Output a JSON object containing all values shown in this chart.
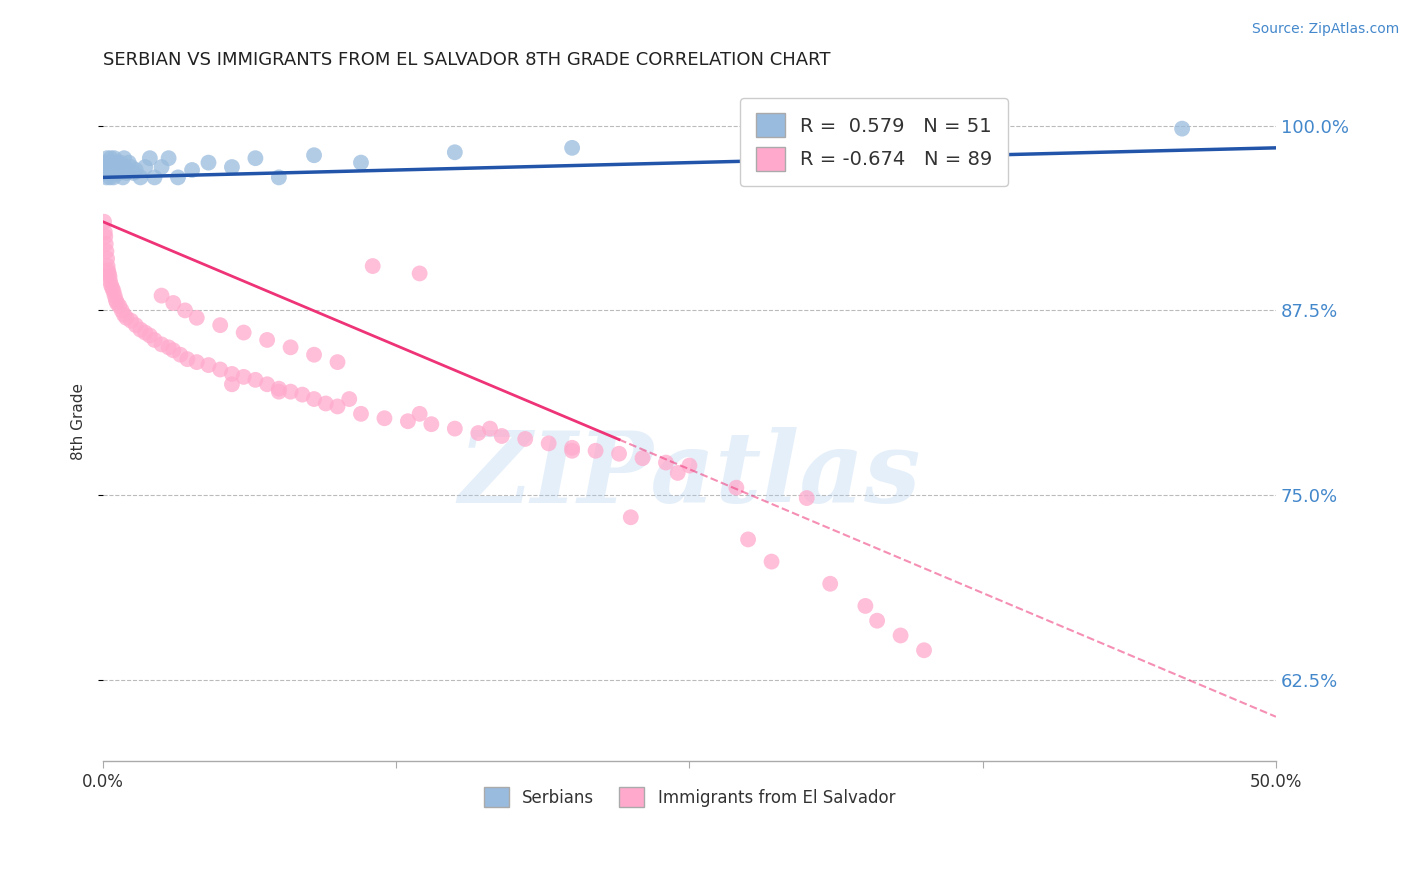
{
  "title": "SERBIAN VS IMMIGRANTS FROM EL SALVADOR 8TH GRADE CORRELATION CHART",
  "source_text": "Source: ZipAtlas.com",
  "ylabel": "8th Grade",
  "xlim": [
    0.0,
    50.0
  ],
  "ylim": [
    57.0,
    103.0
  ],
  "yticks": [
    62.5,
    75.0,
    87.5,
    100.0
  ],
  "ytick_labels": [
    "62.5%",
    "75.0%",
    "87.5%",
    "100.0%"
  ],
  "blue_R": 0.579,
  "blue_N": 51,
  "pink_R": -0.674,
  "pink_N": 89,
  "blue_color": "#99BBDD",
  "pink_color": "#FFAACC",
  "blue_line_color": "#2255AA",
  "pink_line_color": "#EE3377",
  "legend_blue_label": "Serbians",
  "legend_pink_label": "Immigrants from El Salvador",
  "watermark_text": "ZIPatlas",
  "blue_points_x": [
    0.05,
    0.08,
    0.1,
    0.12,
    0.15,
    0.18,
    0.2,
    0.22,
    0.25,
    0.28,
    0.3,
    0.33,
    0.35,
    0.38,
    0.4,
    0.42,
    0.45,
    0.48,
    0.5,
    0.55,
    0.6,
    0.65,
    0.7,
    0.75,
    0.8,
    0.85,
    0.9,
    0.95,
    1.0,
    1.1,
    1.2,
    1.3,
    1.4,
    1.6,
    1.8,
    2.0,
    2.2,
    2.5,
    2.8,
    3.2,
    3.8,
    4.5,
    5.5,
    6.5,
    7.5,
    9.0,
    11.0,
    15.0,
    20.0,
    35.0,
    46.0
  ],
  "blue_points_y": [
    97.2,
    96.8,
    97.5,
    97.0,
    96.5,
    97.8,
    97.2,
    96.8,
    97.5,
    97.0,
    96.5,
    97.8,
    97.2,
    96.8,
    97.5,
    97.0,
    96.5,
    97.8,
    97.2,
    96.8,
    97.5,
    97.0,
    96.8,
    97.5,
    97.0,
    96.5,
    97.8,
    97.2,
    96.8,
    97.5,
    97.2,
    96.8,
    97.0,
    96.5,
    97.2,
    97.8,
    96.5,
    97.2,
    97.8,
    96.5,
    97.0,
    97.5,
    97.2,
    97.8,
    96.5,
    98.0,
    97.5,
    98.2,
    98.5,
    99.2,
    99.8
  ],
  "pink_points_x": [
    0.05,
    0.08,
    0.1,
    0.12,
    0.15,
    0.18,
    0.2,
    0.22,
    0.25,
    0.28,
    0.3,
    0.35,
    0.4,
    0.45,
    0.5,
    0.55,
    0.6,
    0.7,
    0.8,
    0.9,
    1.0,
    1.2,
    1.4,
    1.6,
    1.8,
    2.0,
    2.2,
    2.5,
    2.8,
    3.0,
    3.3,
    3.6,
    4.0,
    4.5,
    5.0,
    5.5,
    6.0,
    6.5,
    7.0,
    7.5,
    8.0,
    8.5,
    9.0,
    9.5,
    10.0,
    11.0,
    12.0,
    13.0,
    14.0,
    15.0,
    16.0,
    17.0,
    18.0,
    19.0,
    20.0,
    21.0,
    22.0,
    23.0,
    24.0,
    25.0,
    2.5,
    3.0,
    3.5,
    4.0,
    5.0,
    6.0,
    7.0,
    8.0,
    9.0,
    10.0,
    11.5,
    13.5,
    5.5,
    7.5,
    10.5,
    13.5,
    16.5,
    20.0,
    24.5,
    27.0,
    30.0,
    27.5,
    28.5,
    31.0,
    32.5,
    33.0,
    34.0,
    35.0,
    22.5
  ],
  "pink_points_y": [
    93.5,
    92.8,
    92.5,
    92.0,
    91.5,
    91.0,
    90.5,
    90.2,
    90.0,
    89.8,
    89.5,
    89.2,
    89.0,
    88.8,
    88.5,
    88.2,
    88.0,
    87.8,
    87.5,
    87.2,
    87.0,
    86.8,
    86.5,
    86.2,
    86.0,
    85.8,
    85.5,
    85.2,
    85.0,
    84.8,
    84.5,
    84.2,
    84.0,
    83.8,
    83.5,
    83.2,
    83.0,
    82.8,
    82.5,
    82.2,
    82.0,
    81.8,
    81.5,
    81.2,
    81.0,
    80.5,
    80.2,
    80.0,
    79.8,
    79.5,
    79.2,
    79.0,
    78.8,
    78.5,
    78.2,
    78.0,
    77.8,
    77.5,
    77.2,
    77.0,
    88.5,
    88.0,
    87.5,
    87.0,
    86.5,
    86.0,
    85.5,
    85.0,
    84.5,
    84.0,
    90.5,
    90.0,
    82.5,
    82.0,
    81.5,
    80.5,
    79.5,
    78.0,
    76.5,
    75.5,
    74.8,
    72.0,
    70.5,
    69.0,
    67.5,
    66.5,
    65.5,
    64.5,
    73.5
  ]
}
